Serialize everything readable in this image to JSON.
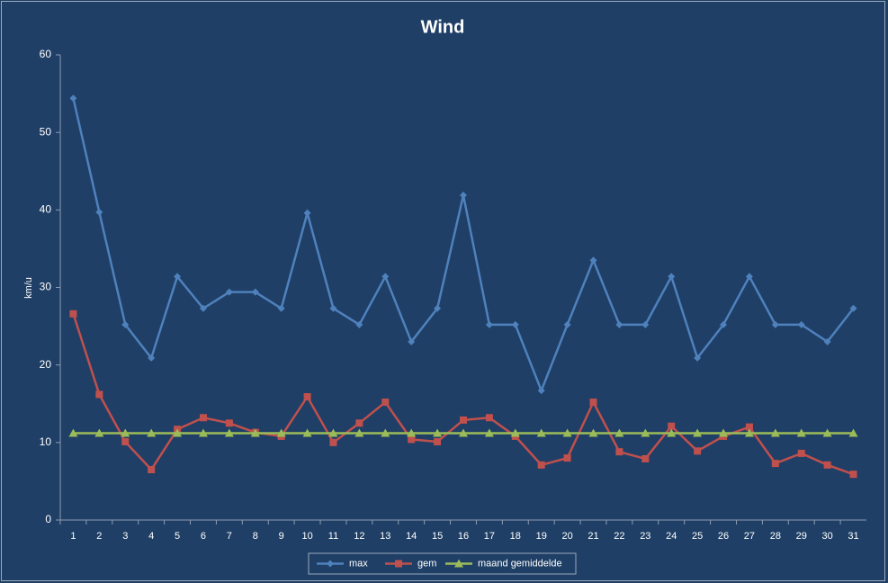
{
  "chart_data": {
    "type": "line",
    "title": "Wind",
    "y_label": "km/u",
    "categories": [
      1,
      2,
      3,
      4,
      5,
      6,
      7,
      8,
      9,
      10,
      11,
      12,
      13,
      14,
      15,
      16,
      17,
      18,
      19,
      20,
      21,
      22,
      23,
      24,
      25,
      26,
      27,
      28,
      29,
      30,
      31
    ],
    "series": [
      {
        "name": "max",
        "color": "#4f81bd",
        "marker": "diamond",
        "values": [
          54.4,
          39.7,
          25.2,
          20.9,
          31.4,
          27.3,
          29.4,
          29.4,
          27.3,
          39.6,
          27.3,
          25.2,
          31.4,
          23.0,
          27.3,
          41.9,
          25.2,
          25.2,
          16.7,
          25.2,
          33.5,
          25.2,
          25.2,
          31.4,
          20.9,
          25.2,
          31.4,
          25.2,
          25.2,
          23.0,
          27.3
        ]
      },
      {
        "name": "gem",
        "color": "#c0504d",
        "marker": "square",
        "values": [
          26.6,
          16.2,
          10.1,
          6.5,
          11.7,
          13.2,
          12.5,
          11.3,
          10.8,
          15.9,
          10.0,
          12.5,
          15.2,
          10.4,
          10.1,
          12.9,
          13.2,
          10.8,
          7.1,
          8.0,
          15.2,
          8.8,
          7.9,
          12.1,
          8.9,
          10.8,
          12.0,
          7.3,
          8.6,
          7.1,
          5.9
        ]
      },
      {
        "name": "maand gemiddelde",
        "color": "#9bbb59",
        "marker": "triangle",
        "values": [
          11.2,
          11.2,
          11.2,
          11.2,
          11.2,
          11.2,
          11.2,
          11.2,
          11.2,
          11.2,
          11.2,
          11.2,
          11.2,
          11.2,
          11.2,
          11.2,
          11.2,
          11.2,
          11.2,
          11.2,
          11.2,
          11.2,
          11.2,
          11.2,
          11.2,
          11.2,
          11.2,
          11.2,
          11.2,
          11.2,
          11.2
        ]
      }
    ],
    "ylim": [
      0,
      60
    ],
    "yticks": [
      0,
      10,
      20,
      30,
      40,
      50,
      60
    ],
    "grid": false,
    "legend": "bottom"
  }
}
